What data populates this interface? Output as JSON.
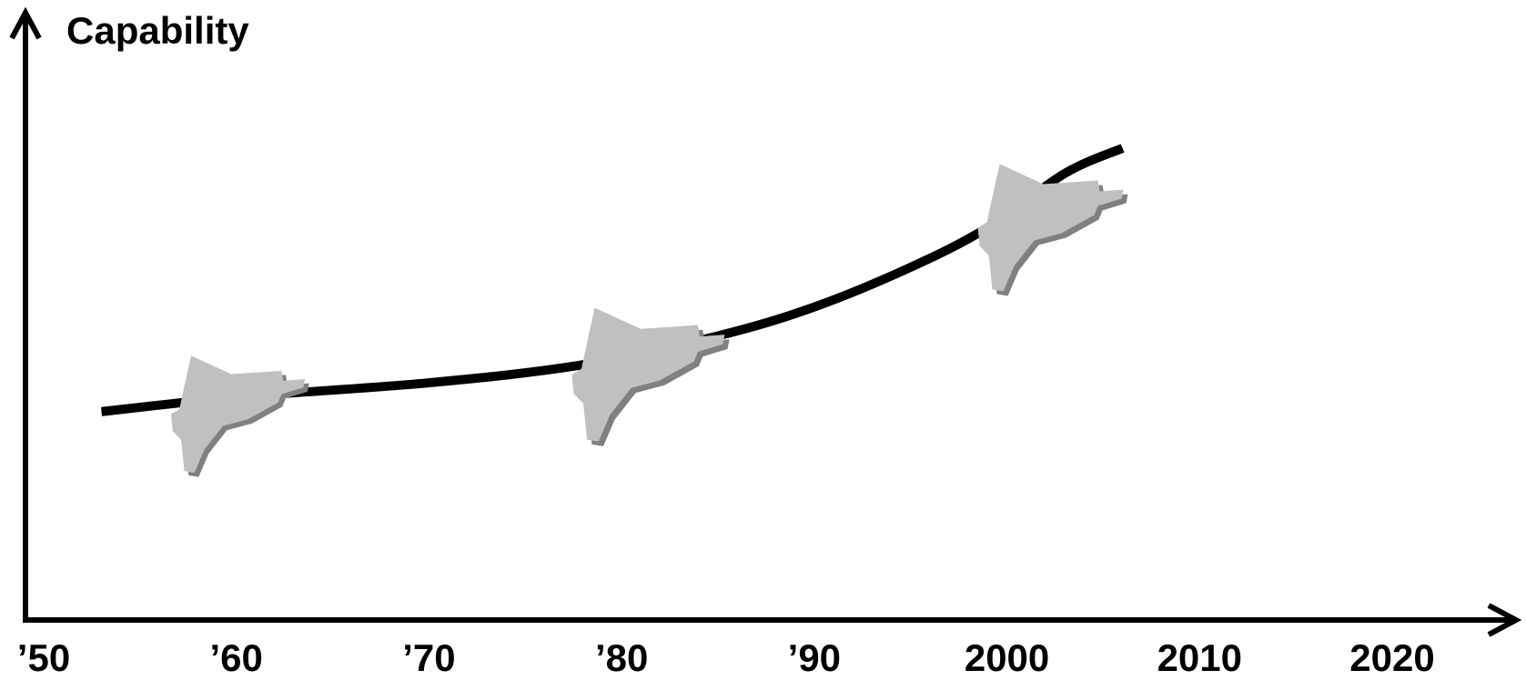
{
  "chart_data": {
    "type": "line",
    "title": "",
    "xlabel": "",
    "ylabel": "Capability",
    "x_tick_labels": [
      "’50",
      "’60",
      "’70",
      "’80",
      "’90",
      "2000",
      "2010",
      "2020"
    ],
    "x_ticks": [
      1950,
      1960,
      1970,
      1980,
      1990,
      2000,
      2010,
      2020
    ],
    "xlim": [
      1950,
      2020
    ],
    "ylim": [
      0,
      100
    ],
    "grid": false,
    "legend": "none",
    "line_color": "#000000",
    "aircraft_color": "#c0c0c0",
    "aircraft_shadow_color": "#808080",
    "series": [
      {
        "x": [
          1953,
          1960,
          1970,
          1978,
          1985,
          1990,
          1995,
          1999,
          2003,
          2006
        ],
        "values": [
          27,
          31,
          35,
          40,
          48,
          56,
          67,
          78,
          93,
          100
        ]
      }
    ],
    "annotations": [
      {
        "type": "aircraft-icon",
        "era": 1958
      },
      {
        "type": "aircraft-icon",
        "era": 1979
      },
      {
        "type": "aircraft-icon",
        "era": 2000
      }
    ]
  }
}
